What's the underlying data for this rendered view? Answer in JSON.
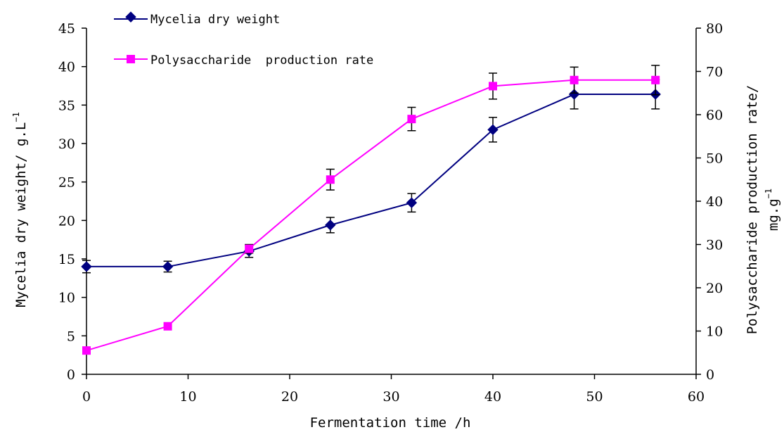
{
  "chart_data": {
    "type": "line",
    "x": [
      0,
      8,
      16,
      24,
      32,
      40,
      48,
      56
    ],
    "xlabel": "Fermentation time /h",
    "xlim": [
      0,
      60
    ],
    "xticks": [
      "0",
      "10",
      "20",
      "30",
      "40",
      "50",
      "60"
    ],
    "y_left": {
      "label": "Mycelia dry weight/ g.L",
      "label_sup": "−1",
      "lim": [
        0,
        45
      ],
      "ticks": [
        "0",
        "5",
        "10",
        "15",
        "20",
        "25",
        "30",
        "35",
        "40",
        "45"
      ]
    },
    "y_right": {
      "label_line1": "Polysaccharide production rate/",
      "label_line2": "mg.g",
      "label_sup": "−1",
      "lim": [
        0,
        80
      ],
      "ticks": [
        "0",
        "10",
        "20",
        "30",
        "40",
        "50",
        "60",
        "70",
        "80"
      ]
    },
    "series": [
      {
        "name": "Mycelia dry weight",
        "axis": "left",
        "color": "#000080",
        "marker": "diamond",
        "values": [
          14.0,
          14.0,
          16.0,
          19.4,
          22.3,
          31.8,
          36.4,
          36.4
        ],
        "errors": [
          0.8,
          0.7,
          0.8,
          1.0,
          1.2,
          1.6,
          1.9,
          1.9
        ]
      },
      {
        "name": "Polysaccharide  production rate",
        "axis": "right",
        "color": "#FF00FF",
        "marker": "square",
        "values": [
          5.5,
          11.1,
          29.0,
          45.0,
          59.0,
          66.6,
          68.0,
          68.0
        ],
        "errors": [
          0.0,
          0.0,
          1.0,
          2.4,
          2.7,
          3.0,
          3.0,
          3.4
        ]
      }
    ],
    "legend_position": "top-left",
    "grid": false
  }
}
